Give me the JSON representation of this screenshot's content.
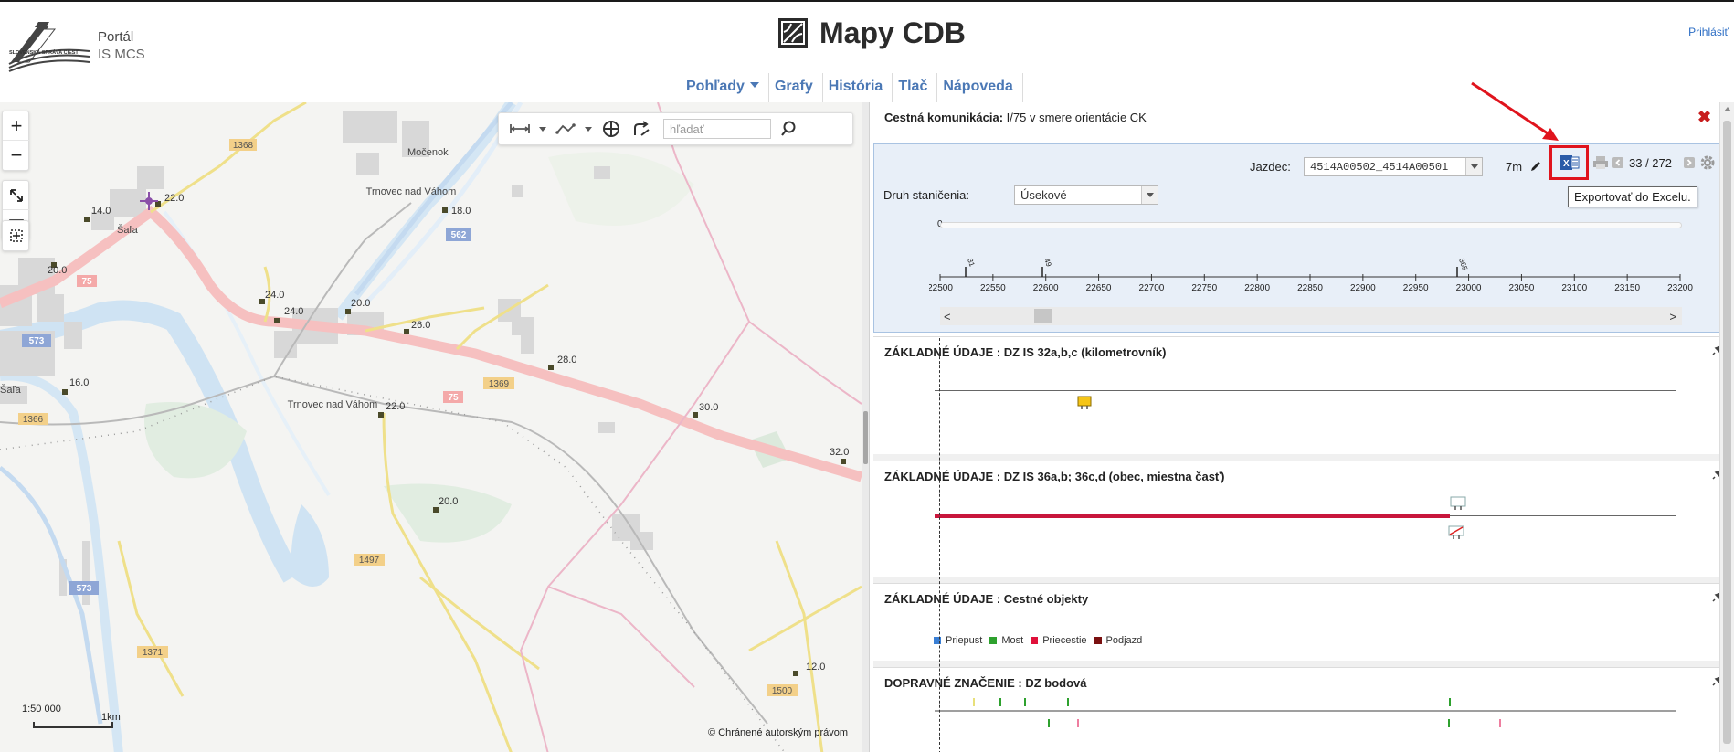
{
  "header": {
    "portal_title": "Portál",
    "portal_subtitle": "IS MCS",
    "logo_text": "SLOVENSKÁ SPRÁVA CIEST",
    "app_title": "Mapy CDB",
    "login_link": "Prihlásiť"
  },
  "menu": {
    "items": [
      "Pohľady",
      "Grafy",
      "História",
      "Tlač",
      "Nápoveda"
    ]
  },
  "map": {
    "search_placeholder": "hľadať",
    "scale_label": "1:50 000",
    "scale_unit": "1km",
    "copyright": "© Chránené autorským právom",
    "place_labels": [
      "Močenok",
      "Trnovec nad Váhom",
      "Šaľa",
      "Trnovec nad Váhom",
      "Šaľa"
    ],
    "road_badges": [
      "1368",
      "562",
      "75",
      "573",
      "1369",
      "75",
      "1366",
      "573",
      "1497",
      "1371",
      "1500"
    ],
    "km_labels": [
      "22.0",
      "14.0",
      "18.0",
      "20.0",
      "24.0",
      "24.0",
      "20.0",
      "26.0",
      "28.0",
      "16.0",
      "22.0",
      "30.0",
      "32.0",
      "20.0",
      "12.0"
    ]
  },
  "panel": {
    "title_label": "Cestná komunikácia:",
    "title_value": "I/75 v smere orientácie CK",
    "rider_label": "Jazdec:",
    "rider_value": "4514A00502_4514A00501",
    "distance": "7m",
    "page_counter": "33 / 272",
    "excel_tooltip": "Exportovať do Excelu.",
    "stationing_label": "Druh staničenia:",
    "stationing_value": "Úsekové",
    "slider_start": "0",
    "axis_ticks": [
      "22500",
      "22550",
      "22600",
      "22650",
      "22700",
      "22750",
      "22800",
      "22850",
      "22900",
      "22950",
      "23000",
      "23050",
      "23100",
      "23150",
      "23200"
    ],
    "markers": [
      "31",
      "49",
      "365"
    ],
    "sections": [
      {
        "title": "ZÁKLADNÉ ÚDAJE : DZ IS 32a,b,c (kilometrovník)"
      },
      {
        "title": "ZÁKLADNÉ ÚDAJE : DZ IS 36a,b; 36c,d (obec, miestna časť)"
      },
      {
        "title": "ZÁKLADNÉ ÚDAJE : Cestné objekty"
      },
      {
        "title": "DOPRAVNÉ ZNAČENIE : DZ bodová"
      }
    ],
    "legend": [
      {
        "label": "Priepust",
        "color": "#3a7fd5"
      },
      {
        "label": "Most",
        "color": "#2ea12e"
      },
      {
        "label": "Priecestie",
        "color": "#e0103a"
      },
      {
        "label": "Podjazd",
        "color": "#7a1010"
      }
    ]
  },
  "colors": {
    "accent": "#4b78b5",
    "highlight": "#e0141d",
    "road_main": "#f6c0c0",
    "road_secondary": "#f3e58a",
    "water": "#cfe3f3",
    "settlement": "#d9d9d9",
    "crimson_bar": "#c8163c"
  }
}
